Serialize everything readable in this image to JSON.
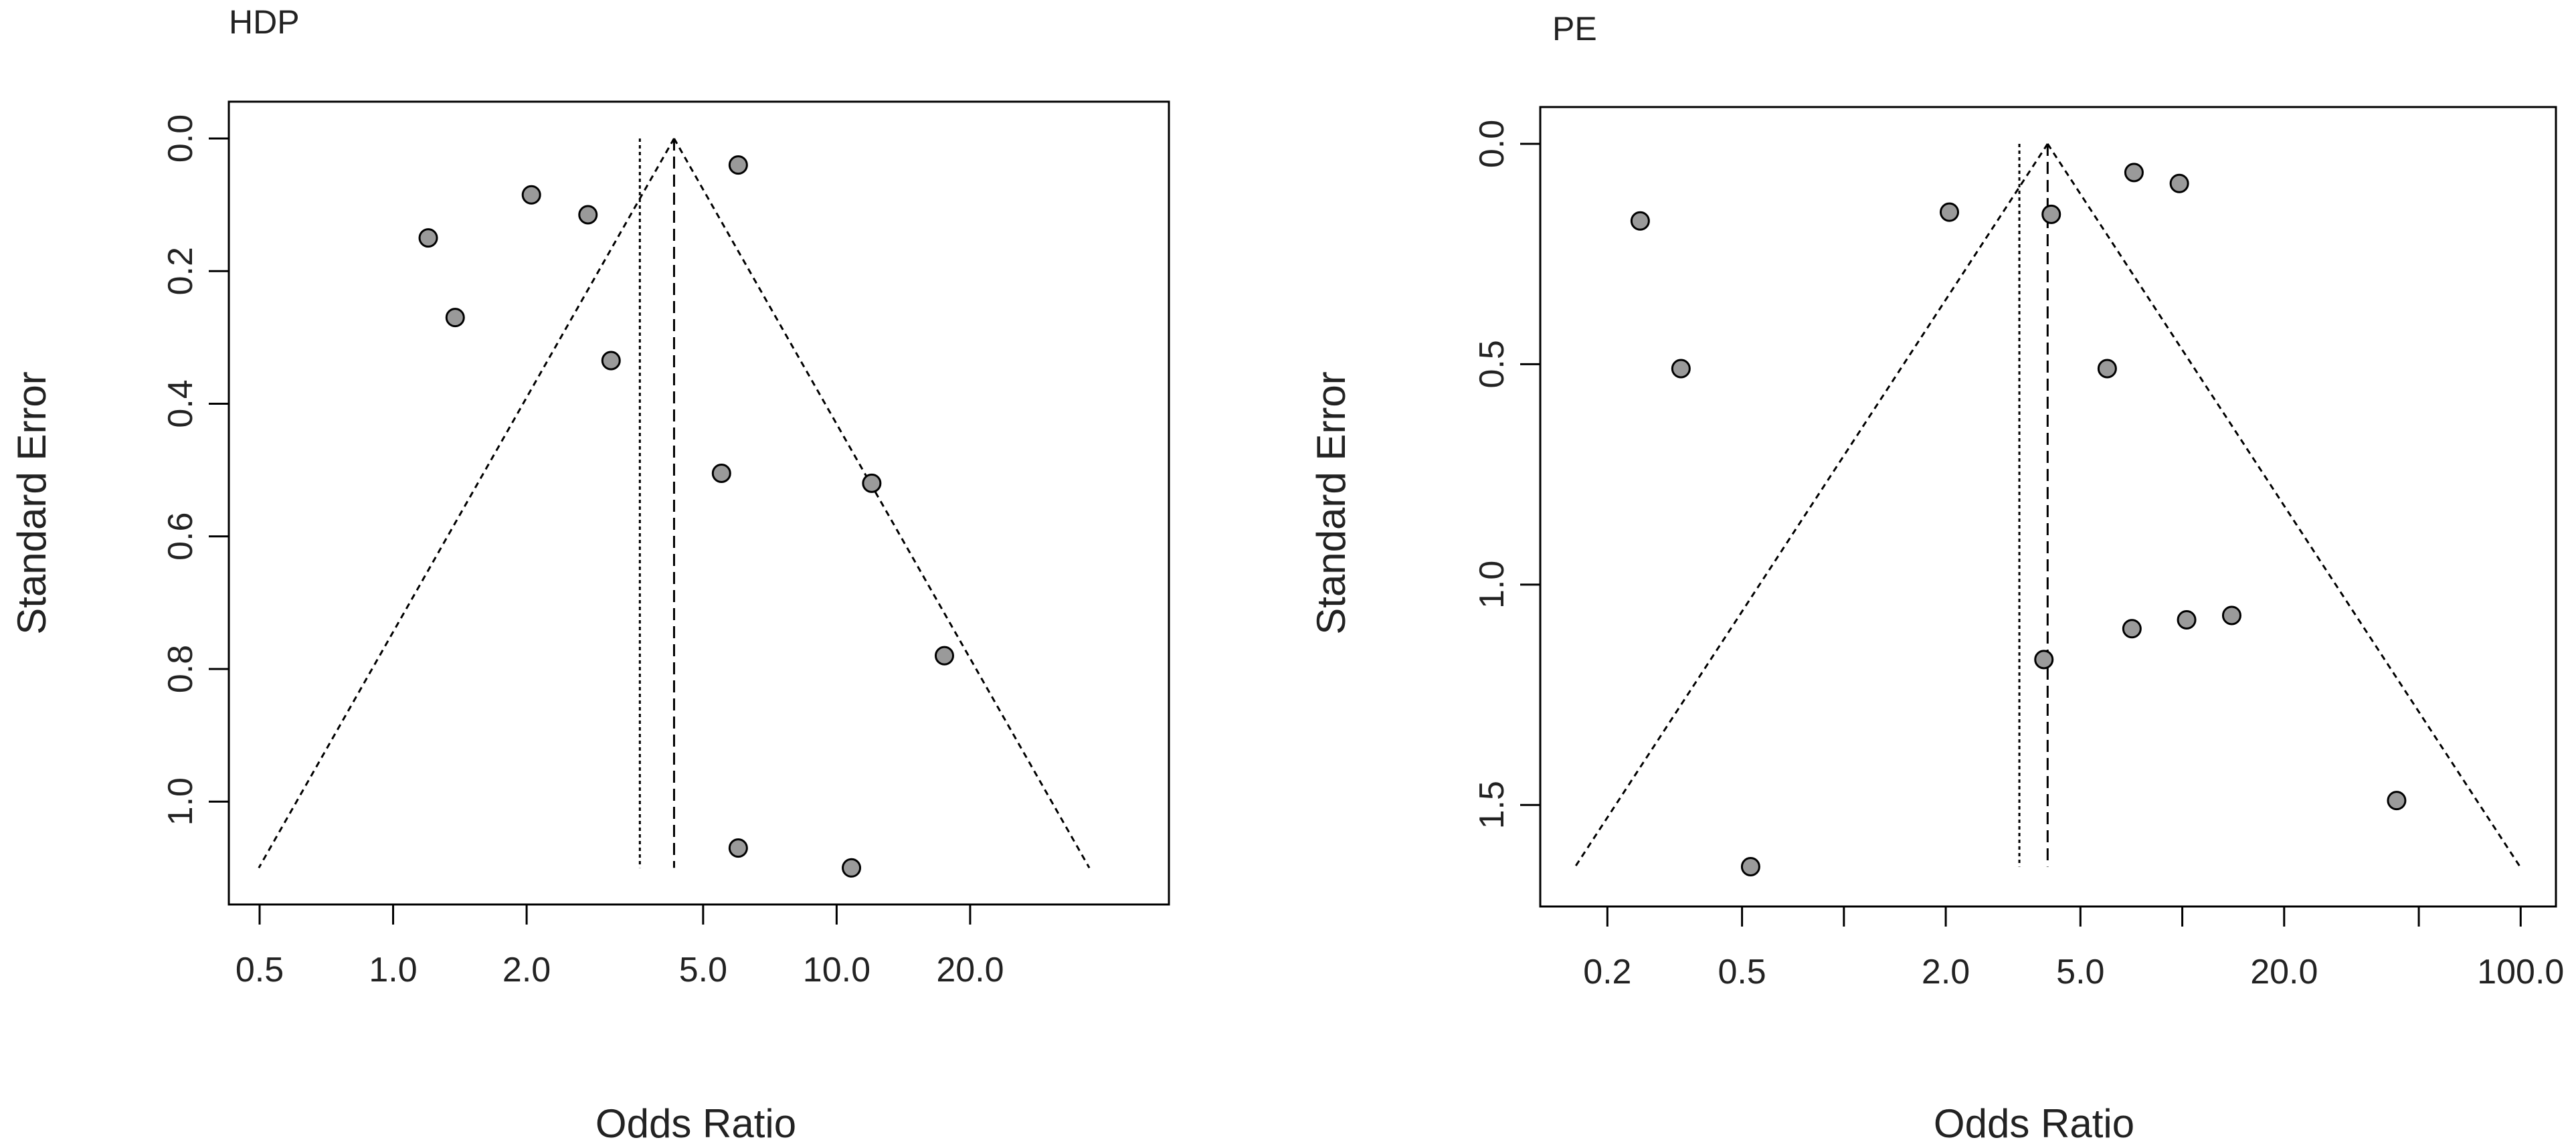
{
  "chart_data": [
    {
      "type": "scatter",
      "subtype": "funnel-plot",
      "title": "HDP",
      "xlabel": "Odds Ratio",
      "ylabel": "Standard Error",
      "x_scale": "log",
      "y_reversed": true,
      "xlim": [
        0.46,
        52
      ],
      "ylim": [
        0,
        1.135
      ],
      "x_ticks": [
        0.5,
        1.0,
        2.0,
        5.0,
        10.0,
        20.0
      ],
      "x_tick_labels": [
        "0.5",
        "1.0",
        "2.0",
        "5.0",
        "10.0",
        "20.0"
      ],
      "y_ticks": [
        0.0,
        0.2,
        0.4,
        0.6,
        0.8,
        1.0
      ],
      "y_tick_labels": [
        "0.0",
        "0.2",
        "0.4",
        "0.6",
        "0.8",
        "1.0"
      ],
      "pooled_or": 4.3,
      "reference_or": 3.6,
      "funnel_max_se": 1.1,
      "points": [
        {
          "x": 6.0,
          "y": 0.04
        },
        {
          "x": 2.05,
          "y": 0.085
        },
        {
          "x": 2.75,
          "y": 0.115
        },
        {
          "x": 1.2,
          "y": 0.15
        },
        {
          "x": 1.38,
          "y": 0.27
        },
        {
          "x": 3.1,
          "y": 0.335
        },
        {
          "x": 5.5,
          "y": 0.505
        },
        {
          "x": 12.0,
          "y": 0.52
        },
        {
          "x": 17.5,
          "y": 0.78
        },
        {
          "x": 6.0,
          "y": 1.07
        },
        {
          "x": 10.8,
          "y": 1.1
        }
      ],
      "grid": false,
      "legend": "none"
    },
    {
      "type": "scatter",
      "subtype": "funnel-plot",
      "title": "PE",
      "xlabel": "Odds Ratio",
      "ylabel": "Standard Error",
      "x_scale": "log",
      "y_reversed": true,
      "xlim": [
        0.14,
        115
      ],
      "ylim": [
        0,
        1.7
      ],
      "x_ticks": [
        0.2,
        0.5,
        1.0,
        2.0,
        5.0,
        10.0,
        20.0,
        50.0,
        100.0
      ],
      "x_tick_labels": [
        "0.2",
        "0.5",
        "",
        "2.0",
        "5.0",
        "",
        "20.0",
        "",
        "100.0"
      ],
      "y_ticks": [
        0.0,
        0.5,
        1.0,
        1.5
      ],
      "y_tick_labels": [
        "0.0",
        "0.5",
        "1.0",
        "1.5"
      ],
      "pooled_or": 4.0,
      "reference_or": 3.3,
      "funnel_max_se": 1.64,
      "points": [
        {
          "x": 7.2,
          "y": 0.065
        },
        {
          "x": 9.8,
          "y": 0.09
        },
        {
          "x": 2.05,
          "y": 0.155
        },
        {
          "x": 4.1,
          "y": 0.16
        },
        {
          "x": 0.25,
          "y": 0.175
        },
        {
          "x": 0.33,
          "y": 0.51
        },
        {
          "x": 6.0,
          "y": 0.51
        },
        {
          "x": 14.0,
          "y": 1.07
        },
        {
          "x": 10.3,
          "y": 1.08
        },
        {
          "x": 7.1,
          "y": 1.1
        },
        {
          "x": 3.9,
          "y": 1.17
        },
        {
          "x": 43.0,
          "y": 1.49
        },
        {
          "x": 0.53,
          "y": 1.64
        }
      ],
      "grid": false,
      "legend": "none"
    }
  ]
}
